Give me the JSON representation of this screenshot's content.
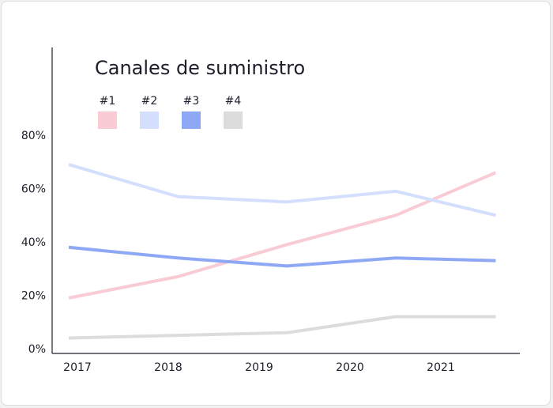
{
  "chart_data": {
    "type": "line",
    "title": "Canales de suministro",
    "xlabel": "",
    "ylabel": "",
    "x": [
      "2017",
      "2018",
      "2019",
      "2020",
      "2021"
    ],
    "point_x": [
      0,
      1.2,
      2.4,
      3.6,
      4.7
    ],
    "ylim": [
      0,
      80
    ],
    "yticks": [
      0,
      20,
      40,
      60,
      80
    ],
    "ytick_labels": [
      "0%",
      "20%",
      "40%",
      "60%",
      "80%"
    ],
    "legend_placement": "top-left",
    "grid": false,
    "series": [
      {
        "name": "#1",
        "color": "#f9cbd4",
        "values": [
          19,
          27,
          39,
          50,
          66
        ]
      },
      {
        "name": "#2",
        "color": "#d3dffc",
        "values": [
          69,
          57,
          55,
          59,
          50
        ]
      },
      {
        "name": "#3",
        "color": "#8fa8f5",
        "values": [
          38,
          34,
          31,
          34,
          33
        ]
      },
      {
        "name": "#4",
        "color": "#dcdcdc",
        "values": [
          4,
          5,
          6,
          12,
          12
        ]
      }
    ]
  }
}
